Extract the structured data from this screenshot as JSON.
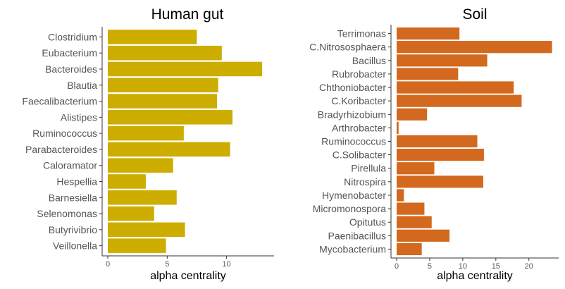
{
  "chart_data": [
    {
      "type": "bar",
      "orientation": "horizontal",
      "title": "Human gut",
      "xlabel": "alpha centrality",
      "ylabel": "",
      "xlim": [
        0,
        14
      ],
      "xticks": [
        0,
        5,
        10
      ],
      "color": "#CCAD00",
      "categories": [
        "Clostridium",
        "Eubacterium",
        "Bacteroides",
        "Blautia",
        "Faecalibacterium",
        "Alistipes",
        "Ruminococcus",
        "Parabacteroides",
        "Caloramator",
        "Hespellia",
        "Barnesiella",
        "Selenomonas",
        "Butyrivibrio",
        "Veillonella"
      ],
      "values": [
        7.5,
        9.6,
        13.0,
        9.3,
        9.2,
        10.5,
        6.4,
        10.3,
        5.5,
        3.2,
        5.8,
        3.9,
        6.5,
        4.9
      ]
    },
    {
      "type": "bar",
      "orientation": "horizontal",
      "title": "Soil",
      "xlabel": "alpha centrality",
      "ylabel": "",
      "xlim": [
        0,
        24.5
      ],
      "xticks": [
        0,
        5,
        10,
        15,
        20
      ],
      "color": "#D2691E",
      "categories": [
        "Terrimonas",
        "C.Nitrososphaera",
        "Bacillus",
        "Rubrobacter",
        "Chthoniobacter",
        "C.Koribacter",
        "Bradyrhizobium",
        "Arthrobacter",
        "Ruminococcus",
        "C.Solibacter",
        "Pirellula",
        "Nitrospira",
        "Hymenobacter",
        "Micromonospora",
        "Opitutus",
        "Paenibacillus",
        "Mycobacterium"
      ],
      "values": [
        9.5,
        23.5,
        13.7,
        9.3,
        17.7,
        18.9,
        4.6,
        0.3,
        12.2,
        13.2,
        5.7,
        13.1,
        1.1,
        4.2,
        5.3,
        8.0,
        3.8
      ]
    }
  ]
}
